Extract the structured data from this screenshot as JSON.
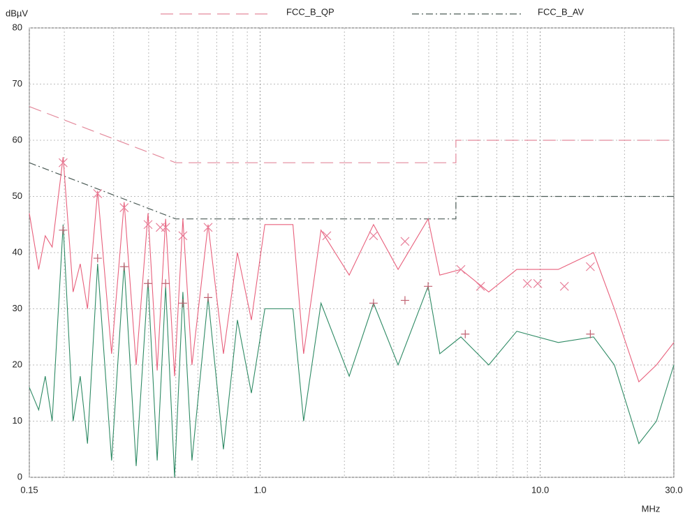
{
  "chart_data": {
    "type": "line",
    "x_scale": "log",
    "grid": true,
    "legend": "top",
    "ylabel": "dBµV",
    "xlabel": "MHz",
    "xlim": [
      0.15,
      30
    ],
    "ylim": [
      0,
      80
    ],
    "xticks": [
      0.15,
      {
        "value": 1,
        "label": "1.0"
      },
      {
        "value": 10,
        "label": "10.0"
      },
      {
        "value": 30,
        "label": "30.0"
      }
    ],
    "xgrid_minor": [
      0.2,
      0.3,
      0.4,
      0.5,
      0.6,
      0.7,
      0.8,
      0.9,
      2,
      3,
      4,
      5,
      6,
      7,
      8,
      9,
      20
    ],
    "yticks": [
      0,
      10,
      20,
      30,
      40,
      50,
      60,
      70,
      80
    ],
    "series": [
      {
        "name": "FCC_B_QP",
        "color": "#e48a9c",
        "style": "dash",
        "x": [
          0.15,
          0.5,
          5,
          5,
          30
        ],
        "values": [
          66,
          56,
          56,
          60,
          60
        ]
      },
      {
        "name": "FCC_B_AV",
        "color": "#4a5a55",
        "style": "dashdot",
        "x": [
          0.15,
          0.5,
          5,
          5,
          30
        ],
        "values": [
          56,
          46,
          46,
          50,
          50
        ]
      },
      {
        "color": "#e8607c",
        "style": "solid",
        "x": [
          0.15,
          0.162,
          0.171,
          0.181,
          0.198,
          0.215,
          0.228,
          0.242,
          0.263,
          0.295,
          0.327,
          0.361,
          0.398,
          0.429,
          0.46,
          0.495,
          0.53,
          0.571,
          0.652,
          0.74,
          0.83,
          0.931,
          1.04,
          1.31,
          1.43,
          1.65,
          2.08,
          2.54,
          3.11,
          3.98,
          4.38,
          5.21,
          6.55,
          8.25,
          11.6,
          15.5,
          18.4,
          22.5,
          26,
          30
        ],
        "values": [
          47,
          37,
          43,
          41,
          57,
          33,
          38,
          30,
          51,
          22,
          49,
          20,
          47,
          19,
          46,
          18,
          46,
          20,
          45,
          22,
          40,
          28,
          45,
          45,
          22,
          44,
          36,
          45,
          37,
          46,
          36,
          37,
          33,
          37,
          37,
          40,
          30,
          17,
          20,
          24
        ]
      },
      {
        "color": "#2e8a64",
        "style": "solid",
        "x": [
          0.15,
          0.162,
          0.171,
          0.181,
          0.198,
          0.215,
          0.228,
          0.242,
          0.263,
          0.295,
          0.327,
          0.361,
          0.398,
          0.429,
          0.46,
          0.495,
          0.53,
          0.571,
          0.652,
          0.74,
          0.83,
          0.931,
          1.04,
          1.31,
          1.43,
          1.65,
          2.08,
          2.54,
          3.11,
          3.98,
          4.38,
          5.21,
          6.55,
          8.25,
          11.6,
          15.5,
          18.4,
          22.5,
          26,
          30
        ],
        "values": [
          16,
          12,
          18,
          10,
          45,
          10,
          18,
          6,
          38,
          3,
          38,
          2,
          35,
          3,
          34,
          0,
          33,
          3,
          32,
          5,
          28,
          15,
          30,
          30,
          10,
          31,
          18,
          31,
          20,
          34,
          22,
          25,
          20,
          26,
          24,
          25,
          20,
          6,
          10,
          20
        ]
      },
      {
        "color": "#e8809a",
        "marker": "x",
        "x": [
          0.198,
          0.263,
          0.327,
          0.398,
          0.44,
          0.46,
          0.53,
          0.652,
          1.73,
          2.54,
          3.29,
          5.21,
          6.12,
          9.0,
          9.8,
          12.2,
          15.1
        ],
        "values": [
          56,
          50.5,
          48,
          45,
          44.5,
          44.5,
          43,
          44.5,
          43,
          43,
          42,
          37,
          34,
          34.5,
          34.5,
          34,
          37.5
        ]
      },
      {
        "color": "#c06070",
        "marker": "+",
        "x": [
          0.198,
          0.263,
          0.327,
          0.398,
          0.46,
          0.53,
          0.652,
          2.54,
          3.29,
          3.98,
          5.4,
          15.1
        ],
        "values": [
          44,
          39,
          37.5,
          34.5,
          34.5,
          31,
          32,
          31,
          31.5,
          34,
          25.5,
          25.5
        ]
      }
    ]
  }
}
